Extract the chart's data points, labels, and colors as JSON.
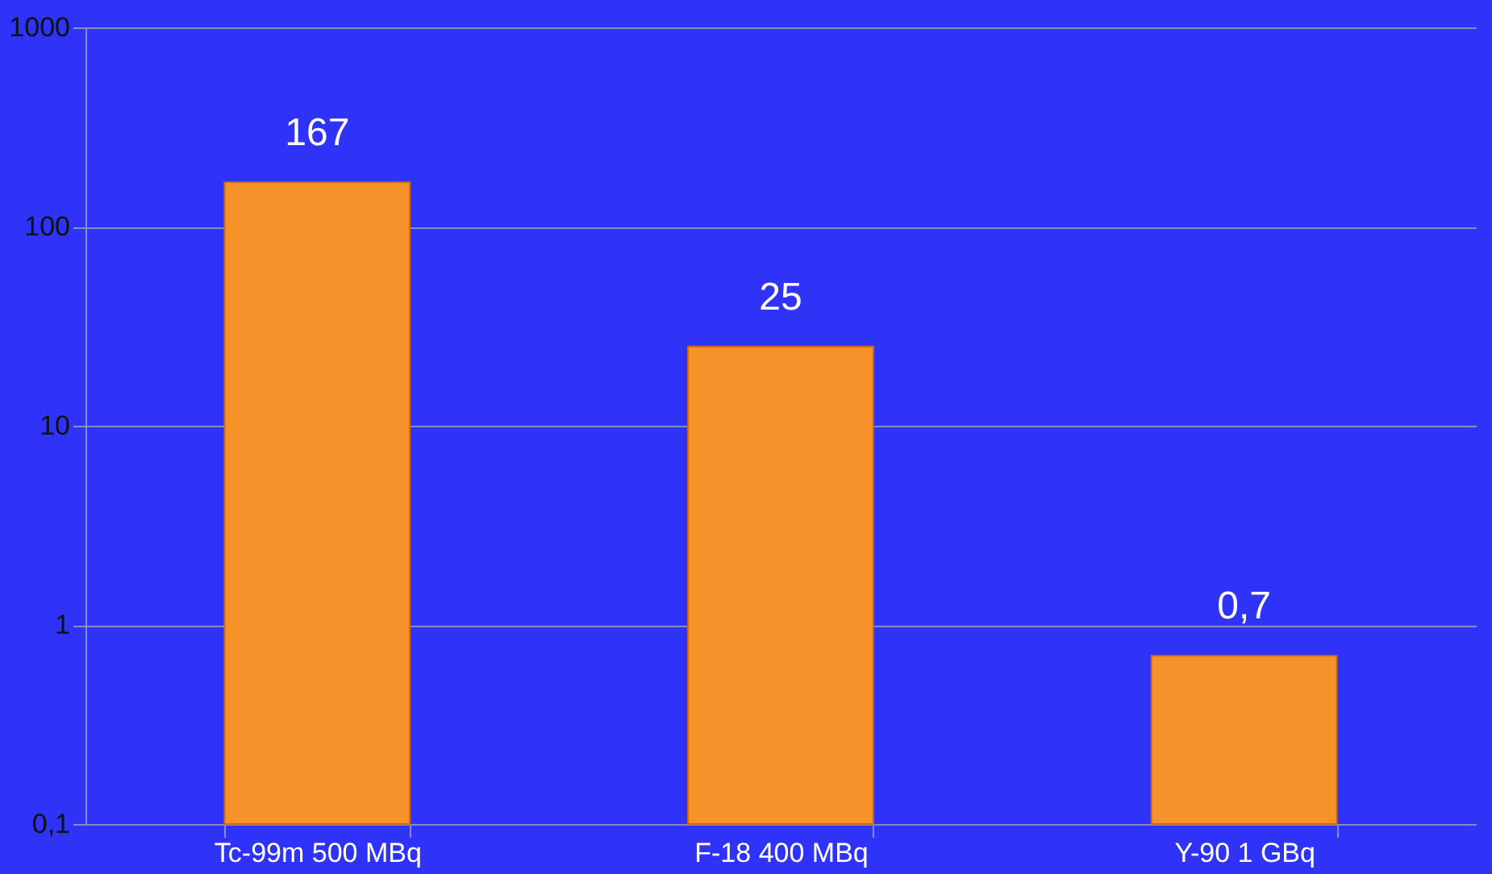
{
  "chart_data": {
    "type": "bar",
    "categories": [
      "Tc-99m 500 MBq",
      "F-18 400 MBq",
      "Y-90 1 GBq"
    ],
    "values": [
      167,
      25,
      0.7
    ],
    "value_labels": [
      "167",
      "25",
      "0,7"
    ],
    "color": "#f7922b",
    "log": "y",
    "ylim": [
      0.1,
      1000
    ],
    "yticks": [
      {
        "value": 0.1,
        "label": "0,1"
      },
      1,
      10,
      100,
      1000
    ],
    "grid": "y"
  }
}
